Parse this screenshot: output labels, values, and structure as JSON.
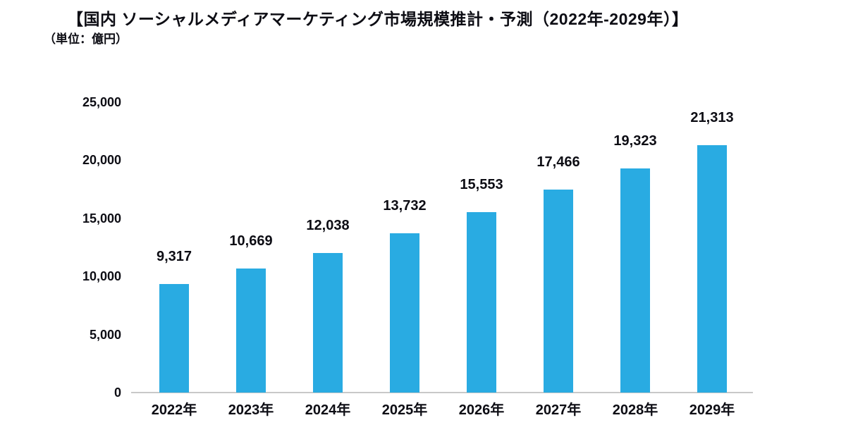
{
  "title": "【国内 ソーシャルメディアマーケティング市場規模推計・予測（2022年-2029年）】",
  "unit_label": "（単位：億円）",
  "colors": {
    "bar": "#29ABE2",
    "axis": "#c8c8c8",
    "text": "#0d0d14",
    "background": "#ffffff"
  },
  "chart_data": {
    "type": "bar",
    "title": "国内 ソーシャルメディアマーケティング市場規模推計・予測（2022年-2029年）",
    "unit": "億円",
    "categories": [
      "2022年",
      "2023年",
      "2024年",
      "2025年",
      "2026年",
      "2027年",
      "2028年",
      "2029年"
    ],
    "values": [
      9317,
      10669,
      12038,
      13732,
      15553,
      17466,
      19323,
      21313
    ],
    "value_labels": [
      "9,317",
      "10,669",
      "12,038",
      "13,732",
      "15,553",
      "17,466",
      "19,323",
      "21,313"
    ],
    "xlabel": "",
    "ylabel": "",
    "ylim": [
      0,
      25000
    ],
    "yticks": [
      0,
      5000,
      10000,
      15000,
      20000,
      25000
    ],
    "ytick_labels": [
      "0",
      "5,000",
      "10,000",
      "15,000",
      "20,000",
      "25,000"
    ],
    "grid": false,
    "legend": "none",
    "data_labels": "above-bars"
  }
}
